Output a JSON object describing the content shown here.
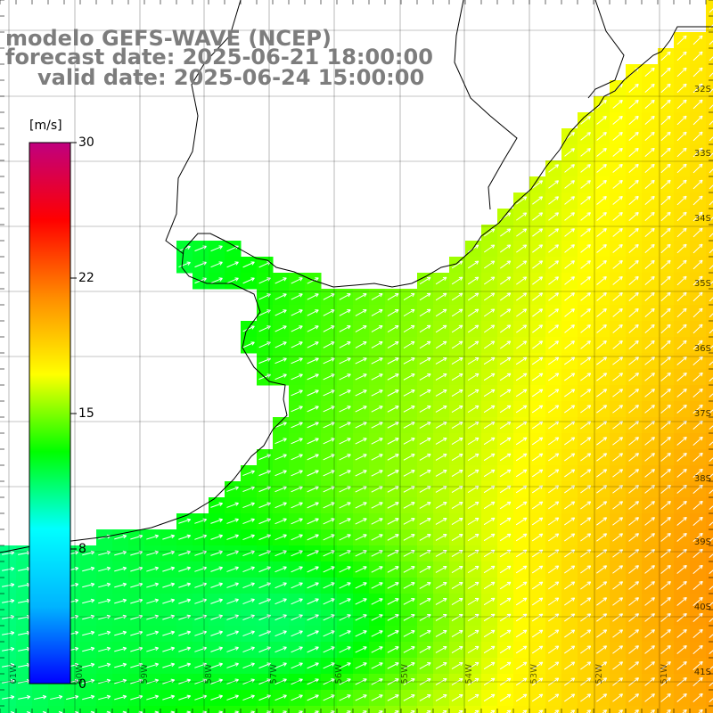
{
  "titles": {
    "model": "modelo GEFS-WAVE (NCEP)",
    "forecast": "forecast date: 2025-06-21 18:00:00",
    "valid": "valid date: 2025-06-24 15:00:00"
  },
  "colorbar": {
    "unit": "[m/s]",
    "ticks": [
      "30",
      "22",
      "15",
      "8",
      "0"
    ],
    "range": [
      0,
      30
    ],
    "colors": [
      "#0000ff",
      "#00b4ff",
      "#00ffff",
      "#00ff00",
      "#ffff00",
      "#ff8c00",
      "#ff0000",
      "#c0007f"
    ]
  },
  "map": {
    "type": "wind-speed-vector-field",
    "variable": "wind speed",
    "land_color": "#ffffff",
    "ocean_shading": "wind speed",
    "lat_labels": [
      "32S",
      "33S",
      "34S",
      "35S",
      "36S",
      "37S",
      "38S",
      "39S",
      "40S",
      "41S"
    ],
    "lon_labels": [
      "61W",
      "60W",
      "59W",
      "58W",
      "57W",
      "56W",
      "55W",
      "54W",
      "53W",
      "52W",
      "51W"
    ],
    "grid": true,
    "vectors": "white arrows pointing east to north-east"
  }
}
